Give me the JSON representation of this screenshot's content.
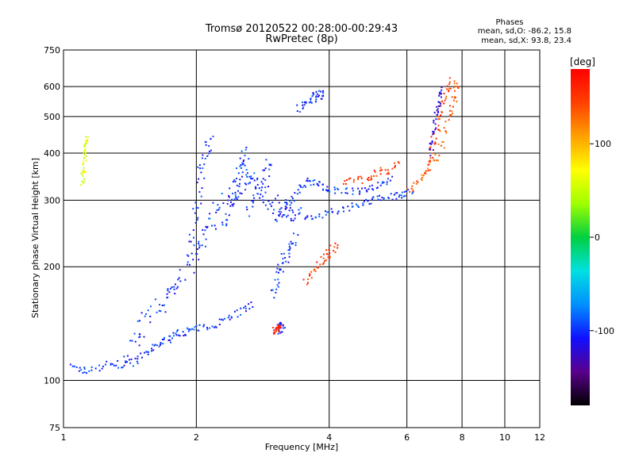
{
  "chart_data": {
    "type": "scatter",
    "title": "Tromsø 20120522 00:28:00-00:29:43",
    "subtitle": "RwPretec (8p)",
    "stats": {
      "heading": "Phases",
      "line_o": "mean, sd,O: -86.2, 15.8",
      "line_x": "mean, sd,X:  93.8, 23.4"
    },
    "xlabel": "Frequency [MHz]",
    "ylabel": "Stationary phase Virtual Height [km]",
    "x_scale": "log",
    "y_scale": "log",
    "xlim": [
      1,
      12
    ],
    "ylim": [
      75,
      750
    ],
    "x_ticks": [
      1,
      2,
      4,
      6,
      8,
      10,
      12
    ],
    "y_ticks": [
      75,
      100,
      200,
      300,
      400,
      500,
      600,
      750
    ],
    "x_gridlines": [
      2,
      4,
      6,
      8,
      10
    ],
    "y_gridlines": [
      100,
      200,
      300,
      400,
      500,
      600
    ],
    "grid": true,
    "colorbar": {
      "label": "[deg]",
      "range": [
        -180,
        180
      ],
      "ticks": [
        100,
        0,
        -100
      ],
      "colors": [
        "#000000",
        "#5a008c",
        "#1010ff",
        "#0090ff",
        "#00e0e0",
        "#00d040",
        "#a0ff00",
        "#ffff00",
        "#ffa000",
        "#ff4000",
        "#ff0000"
      ]
    },
    "traces": [
      {
        "name": "",
        "phase": -100,
        "spread": 0.012,
        "points": [
          [
            1.05,
            108
          ],
          [
            1.12,
            106
          ],
          [
            1.25,
            110
          ],
          [
            1.35,
            110
          ],
          [
            1.45,
            112
          ],
          [
            1.55,
            118
          ],
          [
            1.65,
            125
          ],
          [
            1.75,
            130
          ],
          [
            1.85,
            134
          ],
          [
            1.95,
            136
          ],
          [
            2.1,
            138
          ],
          [
            2.3,
            145
          ],
          [
            2.5,
            152
          ],
          [
            2.7,
            160
          ]
        ]
      },
      {
        "name": "",
        "phase": -100,
        "spread": 0.03,
        "points": [
          [
            1.4,
            120
          ],
          [
            1.5,
            135
          ],
          [
            1.6,
            150
          ],
          [
            1.7,
            165
          ],
          [
            1.8,
            180
          ],
          [
            1.9,
            200
          ],
          [
            2.0,
            220
          ],
          [
            2.1,
            250
          ],
          [
            2.2,
            270
          ],
          [
            2.35,
            300
          ],
          [
            2.5,
            320
          ],
          [
            2.6,
            350
          ],
          [
            2.7,
            330
          ],
          [
            2.9,
            310
          ],
          [
            3.0,
            295
          ],
          [
            3.2,
            285
          ],
          [
            3.4,
            280
          ]
        ]
      },
      {
        "name": "",
        "phase": -100,
        "spread": 0.02,
        "points": [
          [
            1.95,
            230
          ],
          [
            2.0,
            290
          ],
          [
            2.05,
            350
          ],
          [
            2.1,
            410
          ],
          [
            2.15,
            440
          ]
        ]
      },
      {
        "name": "",
        "phase": -100,
        "spread": 0.02,
        "points": [
          [
            2.3,
            250
          ],
          [
            2.4,
            300
          ],
          [
            2.5,
            340
          ],
          [
            2.55,
            380
          ],
          [
            2.6,
            400
          ]
        ]
      },
      {
        "name": "",
        "phase": -100,
        "spread": 0.02,
        "points": [
          [
            2.6,
            280
          ],
          [
            2.75,
            320
          ],
          [
            2.85,
            350
          ],
          [
            2.95,
            380
          ]
        ]
      },
      {
        "name": "",
        "phase": -100,
        "spread": 0.012,
        "points": [
          [
            3.0,
            260
          ],
          [
            3.2,
            290
          ],
          [
            3.4,
            320
          ],
          [
            3.6,
            340
          ],
          [
            3.8,
            330
          ],
          [
            4.0,
            320
          ],
          [
            4.4,
            315
          ],
          [
            4.8,
            320
          ],
          [
            5.2,
            330
          ],
          [
            5.6,
            345
          ]
        ]
      },
      {
        "name": "",
        "phase": -100,
        "spread": 0.012,
        "points": [
          [
            3.1,
            268
          ],
          [
            3.5,
            272
          ],
          [
            3.8,
            275
          ],
          [
            4.2,
            280
          ],
          [
            4.6,
            290
          ],
          [
            5.0,
            300
          ],
          [
            5.4,
            305
          ],
          [
            5.8,
            310
          ],
          [
            6.2,
            320
          ]
        ]
      },
      {
        "name": "",
        "phase": -100,
        "spread": 0.02,
        "points": [
          [
            2.95,
            170
          ],
          [
            3.05,
            190
          ],
          [
            3.15,
            205
          ],
          [
            3.25,
            225
          ],
          [
            3.4,
            240
          ]
        ]
      },
      {
        "name": "",
        "phase": -100,
        "spread": 0.015,
        "points": [
          [
            3.4,
            520
          ],
          [
            3.55,
            540
          ],
          [
            3.7,
            560
          ],
          [
            3.8,
            570
          ],
          [
            3.9,
            575
          ]
        ]
      },
      {
        "name": "",
        "phase": 150,
        "spread": 0.015,
        "points": [
          [
            3.5,
            180
          ],
          [
            3.7,
            200
          ],
          [
            3.9,
            210
          ],
          [
            4.0,
            220
          ],
          [
            4.2,
            230
          ]
        ]
      },
      {
        "name": "",
        "phase": 150,
        "spread": 0.015,
        "points": [
          [
            4.3,
            330
          ],
          [
            4.7,
            340
          ],
          [
            5.0,
            350
          ],
          [
            5.4,
            360
          ],
          [
            5.8,
            380
          ]
        ]
      },
      {
        "name": "",
        "phase": 130,
        "spread": 0.015,
        "points": [
          [
            6.1,
            320
          ],
          [
            6.4,
            340
          ],
          [
            6.8,
            370
          ],
          [
            7.2,
            420
          ],
          [
            7.5,
            500
          ],
          [
            7.7,
            560
          ],
          [
            7.8,
            620
          ]
        ]
      },
      {
        "name": "",
        "phase": 150,
        "spread": 0.015,
        "points": [
          [
            6.6,
            350
          ],
          [
            6.8,
            400
          ],
          [
            7.0,
            460
          ],
          [
            7.2,
            520
          ],
          [
            7.4,
            580
          ],
          [
            7.6,
            630
          ]
        ]
      },
      {
        "name": "",
        "phase": -120,
        "spread": 0.012,
        "points": [
          [
            6.8,
            400
          ],
          [
            6.9,
            450
          ],
          [
            7.0,
            500
          ],
          [
            7.1,
            550
          ],
          [
            7.2,
            590
          ]
        ]
      },
      {
        "name": "",
        "phase": -110,
        "spread": 0.015,
        "points": [
          [
            3.05,
            137
          ],
          [
            3.1,
            138
          ],
          [
            3.15,
            140
          ]
        ]
      },
      {
        "name": "",
        "phase": 160,
        "spread": 0.01,
        "points": [
          [
            3.0,
            135
          ],
          [
            3.05,
            137
          ],
          [
            3.1,
            139
          ]
        ]
      },
      {
        "name": "",
        "phase": 60,
        "spread": 0.01,
        "points": [
          [
            1.1,
            330
          ],
          [
            1.11,
            360
          ],
          [
            1.12,
            390
          ],
          [
            1.12,
            420
          ],
          [
            1.13,
            445
          ]
        ]
      }
    ]
  }
}
